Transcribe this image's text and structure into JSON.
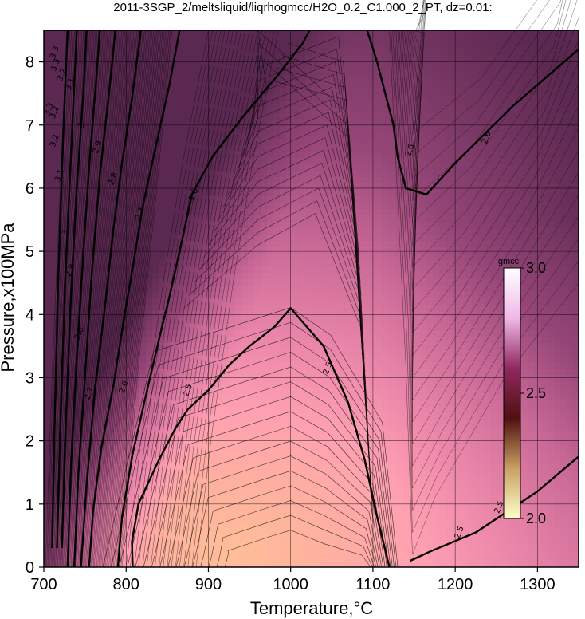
{
  "chart_data": {
    "type": "heatmap",
    "subtype": "filled contour map",
    "title": "2011-3SGP_2/meltsliquid/liqrhogmcc/H2O_0.2_C1.000_2_PT, dz=0.01:",
    "xlabel": "Temperature,°C",
    "ylabel": "Pressure,x100MPa",
    "xlim": [
      700,
      1350
    ],
    "ylim": [
      0,
      8.5
    ],
    "x_ticks": [
      "700",
      "800",
      "900",
      "1000",
      "1100",
      "1200",
      "1300"
    ],
    "y_ticks": [
      "0",
      "1",
      "2",
      "3",
      "4",
      "5",
      "6",
      "7",
      "8"
    ],
    "grid": true,
    "contour_interval": 0.01,
    "colorbar": {
      "unit": "gmcc",
      "range": [
        2.0,
        3.0
      ],
      "ticks": [
        "3.0",
        "2.5",
        "2.0"
      ],
      "colors": [
        "#ffffc8",
        "#c8a064",
        "#501010",
        "#902860",
        "#f0b8e8",
        "#ffffff"
      ]
    },
    "field_colors": {
      "low": "#ffbb98",
      "mid": "#ff9aa8",
      "high": "#7a3a6a"
    },
    "labeled_contours": [
      {
        "value": "2.5",
        "points": [
          [
            1145,
            0.1
          ],
          [
            1170,
            0.25
          ],
          [
            1225,
            0.55
          ],
          [
            1300,
            1.2
          ],
          [
            1350,
            1.75
          ]
        ]
      },
      {
        "value": "2.5",
        "points": [
          [
            1120,
            0
          ],
          [
            1105,
            0.8
          ],
          [
            1090,
            1.7
          ],
          [
            1070,
            2.6
          ],
          [
            1050,
            3.2
          ],
          [
            1040,
            3.5
          ],
          [
            1020,
            3.8
          ],
          [
            1000,
            4.1
          ],
          [
            980,
            3.8
          ],
          [
            950,
            3.5
          ],
          [
            925,
            3.2
          ],
          [
            900,
            2.8
          ],
          [
            875,
            2.5
          ],
          [
            860,
            2.2
          ],
          [
            840,
            1.7
          ],
          [
            815,
            1.0
          ],
          [
            807,
            0.4
          ],
          [
            808,
            0
          ]
        ]
      },
      {
        "value": "2.6",
        "points": [
          [
            790,
            0
          ],
          [
            795,
            0.8
          ],
          [
            808,
            1.8
          ],
          [
            822,
            2.6
          ],
          [
            838,
            3.5
          ],
          [
            853,
            4.3
          ],
          [
            870,
            5.3
          ],
          [
            880,
            5.9
          ],
          [
            905,
            6.5
          ],
          [
            940,
            7.1
          ],
          [
            985,
            7.8
          ],
          [
            1015,
            8.3
          ],
          [
            1023,
            8.5
          ]
        ]
      },
      {
        "value": "2.6",
        "points": [
          [
            1093,
            8.5
          ],
          [
            1105,
            8.0
          ],
          [
            1125,
            7.0
          ],
          [
            1130,
            6.5
          ],
          [
            1140,
            6.0
          ],
          [
            1165,
            5.9
          ],
          [
            1200,
            6.4
          ],
          [
            1270,
            7.3
          ],
          [
            1350,
            8.2
          ]
        ]
      },
      {
        "value": "2.7",
        "points": [
          [
            755,
            0
          ],
          [
            760,
            0.9
          ],
          [
            770,
            1.9
          ],
          [
            785,
            2.9
          ],
          [
            797,
            3.9
          ],
          [
            810,
            4.9
          ],
          [
            820,
            5.7
          ],
          [
            835,
            6.6
          ],
          [
            852,
            7.6
          ],
          [
            865,
            8.5
          ]
        ]
      },
      {
        "value": "2.8",
        "points": [
          [
            745,
            0
          ],
          [
            752,
            1.3
          ],
          [
            762,
            2.8
          ],
          [
            775,
            4.2
          ],
          [
            785,
            5.4
          ],
          [
            795,
            6.4
          ],
          [
            808,
            7.5
          ],
          [
            818,
            8.5
          ]
        ]
      },
      {
        "value": "2.9",
        "points": [
          [
            737,
            0
          ],
          [
            742,
            1.5
          ],
          [
            750,
            3.0
          ],
          [
            758,
            4.6
          ],
          [
            768,
            6.2
          ],
          [
            780,
            7.6
          ],
          [
            787,
            8.5
          ]
        ]
      },
      {
        "value": "3",
        "points": [
          [
            729,
            0
          ],
          [
            733,
            1.6
          ],
          [
            740,
            3.3
          ],
          [
            748,
            5.0
          ],
          [
            756,
            6.5
          ],
          [
            763,
            7.6
          ],
          [
            768,
            8.5
          ]
        ]
      },
      {
        "value": "3.1",
        "points": [
          [
            722,
            0.3
          ],
          [
            726,
            2.0
          ],
          [
            732,
            4.0
          ],
          [
            740,
            6.0
          ],
          [
            748,
            7.5
          ],
          [
            752,
            8.5
          ]
        ]
      },
      {
        "value": "3.2",
        "points": [
          [
            716,
            0.3
          ],
          [
            720,
            2.2
          ],
          [
            726,
            4.5
          ],
          [
            734,
            6.8
          ],
          [
            740,
            8.5
          ]
        ]
      },
      {
        "value": "3.3",
        "points": [
          [
            710,
            0.3
          ],
          [
            713,
            2.2
          ],
          [
            718,
            4.8
          ],
          [
            724,
            7.0
          ],
          [
            729,
            8.5
          ]
        ]
      }
    ],
    "contour_labels": [
      {
        "text": "3.3",
        "x": 713,
        "y": 8.15
      },
      {
        "text": "3.3",
        "x": 714,
        "y": 7.95
      },
      {
        "text": "3.2",
        "x": 722,
        "y": 7.8
      },
      {
        "text": "3.1",
        "x": 732,
        "y": 7.65
      },
      {
        "text": "3.3",
        "x": 706,
        "y": 7.25
      },
      {
        "text": "3.2",
        "x": 713,
        "y": 7.2
      },
      {
        "text": "3",
        "x": 746,
        "y": 7.0
      },
      {
        "text": "3.2",
        "x": 713,
        "y": 6.75
      },
      {
        "text": "2.9",
        "x": 765,
        "y": 6.65
      },
      {
        "text": "3.1",
        "x": 719,
        "y": 6.2
      },
      {
        "text": "2.8",
        "x": 784,
        "y": 6.15
      },
      {
        "text": "2.7",
        "x": 817,
        "y": 5.6
      },
      {
        "text": "2.6",
        "x": 882,
        "y": 5.9
      },
      {
        "text": "2.6",
        "x": 1145,
        "y": 6.6
      },
      {
        "text": "2.6",
        "x": 1238,
        "y": 6.8
      },
      {
        "text": "3",
        "x": 726,
        "y": 5.3
      },
      {
        "text": "2.9",
        "x": 732,
        "y": 4.7
      },
      {
        "text": "2.8",
        "x": 743,
        "y": 3.7
      },
      {
        "text": "2.7",
        "x": 755,
        "y": 2.75
      },
      {
        "text": "2.6",
        "x": 797,
        "y": 2.85
      },
      {
        "text": "2.5",
        "x": 875,
        "y": 2.8
      },
      {
        "text": "2.5",
        "x": 1045,
        "y": 3.15
      },
      {
        "text": "2.5",
        "x": 1205,
        "y": 0.55
      },
      {
        "text": "2.5",
        "x": 1253,
        "y": 0.95
      }
    ]
  }
}
